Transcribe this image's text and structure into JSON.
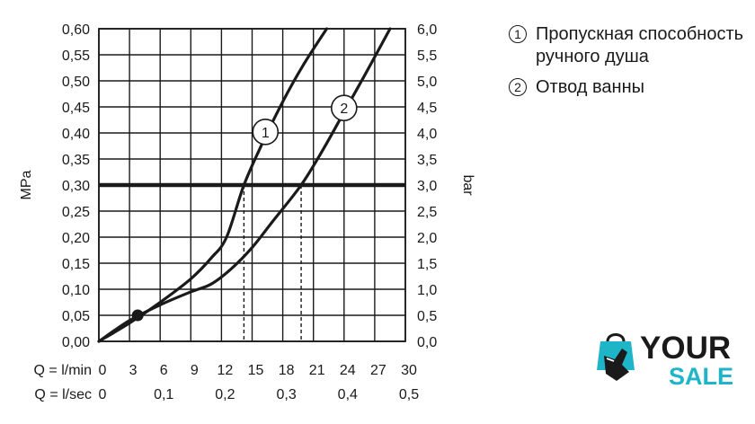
{
  "chart_data": {
    "type": "line",
    "y_left": {
      "label": "MPa",
      "range": [
        0,
        0.6
      ],
      "ticks": [
        "0,00",
        "0,05",
        "0,10",
        "0,15",
        "0,20",
        "0,25",
        "0,30",
        "0,35",
        "0,40",
        "0,45",
        "0,50",
        "0,55",
        "0,60"
      ]
    },
    "y_right": {
      "label": "bar",
      "range": [
        0,
        6
      ],
      "ticks": [
        "0,0",
        "0,5",
        "1,0",
        "1,5",
        "2,0",
        "2,5",
        "3,0",
        "3,5",
        "4,0",
        "4,5",
        "5,0",
        "5,5",
        "6,0"
      ]
    },
    "x_lmin": {
      "label": "Q = l/min",
      "range": [
        0,
        30
      ],
      "ticks": [
        {
          "value": 0,
          "label": "0"
        },
        {
          "value": 3,
          "label": "3"
        },
        {
          "value": 6,
          "label": "6"
        },
        {
          "value": 9,
          "label": "9"
        },
        {
          "value": 12,
          "label": "12"
        },
        {
          "value": 15,
          "label": "15"
        },
        {
          "value": 18,
          "label": "18"
        },
        {
          "value": 21,
          "label": "21"
        },
        {
          "value": 24,
          "label": "24"
        },
        {
          "value": 27,
          "label": "27"
        },
        {
          "value": 30,
          "label": "30"
        }
      ]
    },
    "x_lsec": {
      "label": "Q = l/sec",
      "ticks": [
        {
          "value": 0,
          "label": "0"
        },
        {
          "value": 0.1,
          "label": "0,1"
        },
        {
          "value": 0.2,
          "label": "0,2"
        },
        {
          "value": 0.3,
          "label": "0,3"
        },
        {
          "value": 0.4,
          "label": "0,4"
        },
        {
          "value": 0.5,
          "label": "0,5"
        }
      ]
    },
    "grid": true,
    "series": [
      {
        "name": "1",
        "x": [
          0,
          3,
          6,
          9,
          11,
          12.5,
          14.2,
          16,
          18,
          20,
          22.3
        ],
        "y": [
          0,
          0.035,
          0.075,
          0.12,
          0.16,
          0.2,
          0.3,
          0.38,
          0.46,
          0.53,
          0.6
        ]
      },
      {
        "name": "2",
        "x": [
          0,
          3,
          6,
          9,
          11,
          13,
          15,
          17,
          19.8,
          22,
          24,
          26,
          28.5
        ],
        "y": [
          0,
          0.04,
          0.07,
          0.095,
          0.11,
          0.14,
          0.18,
          0.23,
          0.3,
          0.37,
          0.44,
          0.51,
          0.6
        ]
      }
    ],
    "reference_line": {
      "y": 0.3
    },
    "drop_lines": [
      {
        "x": 14.2,
        "y": 0.3
      },
      {
        "x": 19.8,
        "y": 0.3
      }
    ],
    "marker_point": {
      "x": 3.8,
      "y": 0.05
    },
    "curve_labels": [
      {
        "series": "1",
        "x": 16.3,
        "y": 0.402
      },
      {
        "series": "2",
        "x": 24.0,
        "y": 0.448
      }
    ]
  },
  "legend": {
    "items": [
      {
        "num": "1",
        "text": "Пропускная способность ручного душа"
      },
      {
        "num": "2",
        "text": "Отвод ванны"
      }
    ]
  },
  "logo": {
    "word_top": "YOUR",
    "word_bottom": "SALE",
    "color_primary": "#1a1a1a",
    "color_accent": "#1fb5c9"
  }
}
